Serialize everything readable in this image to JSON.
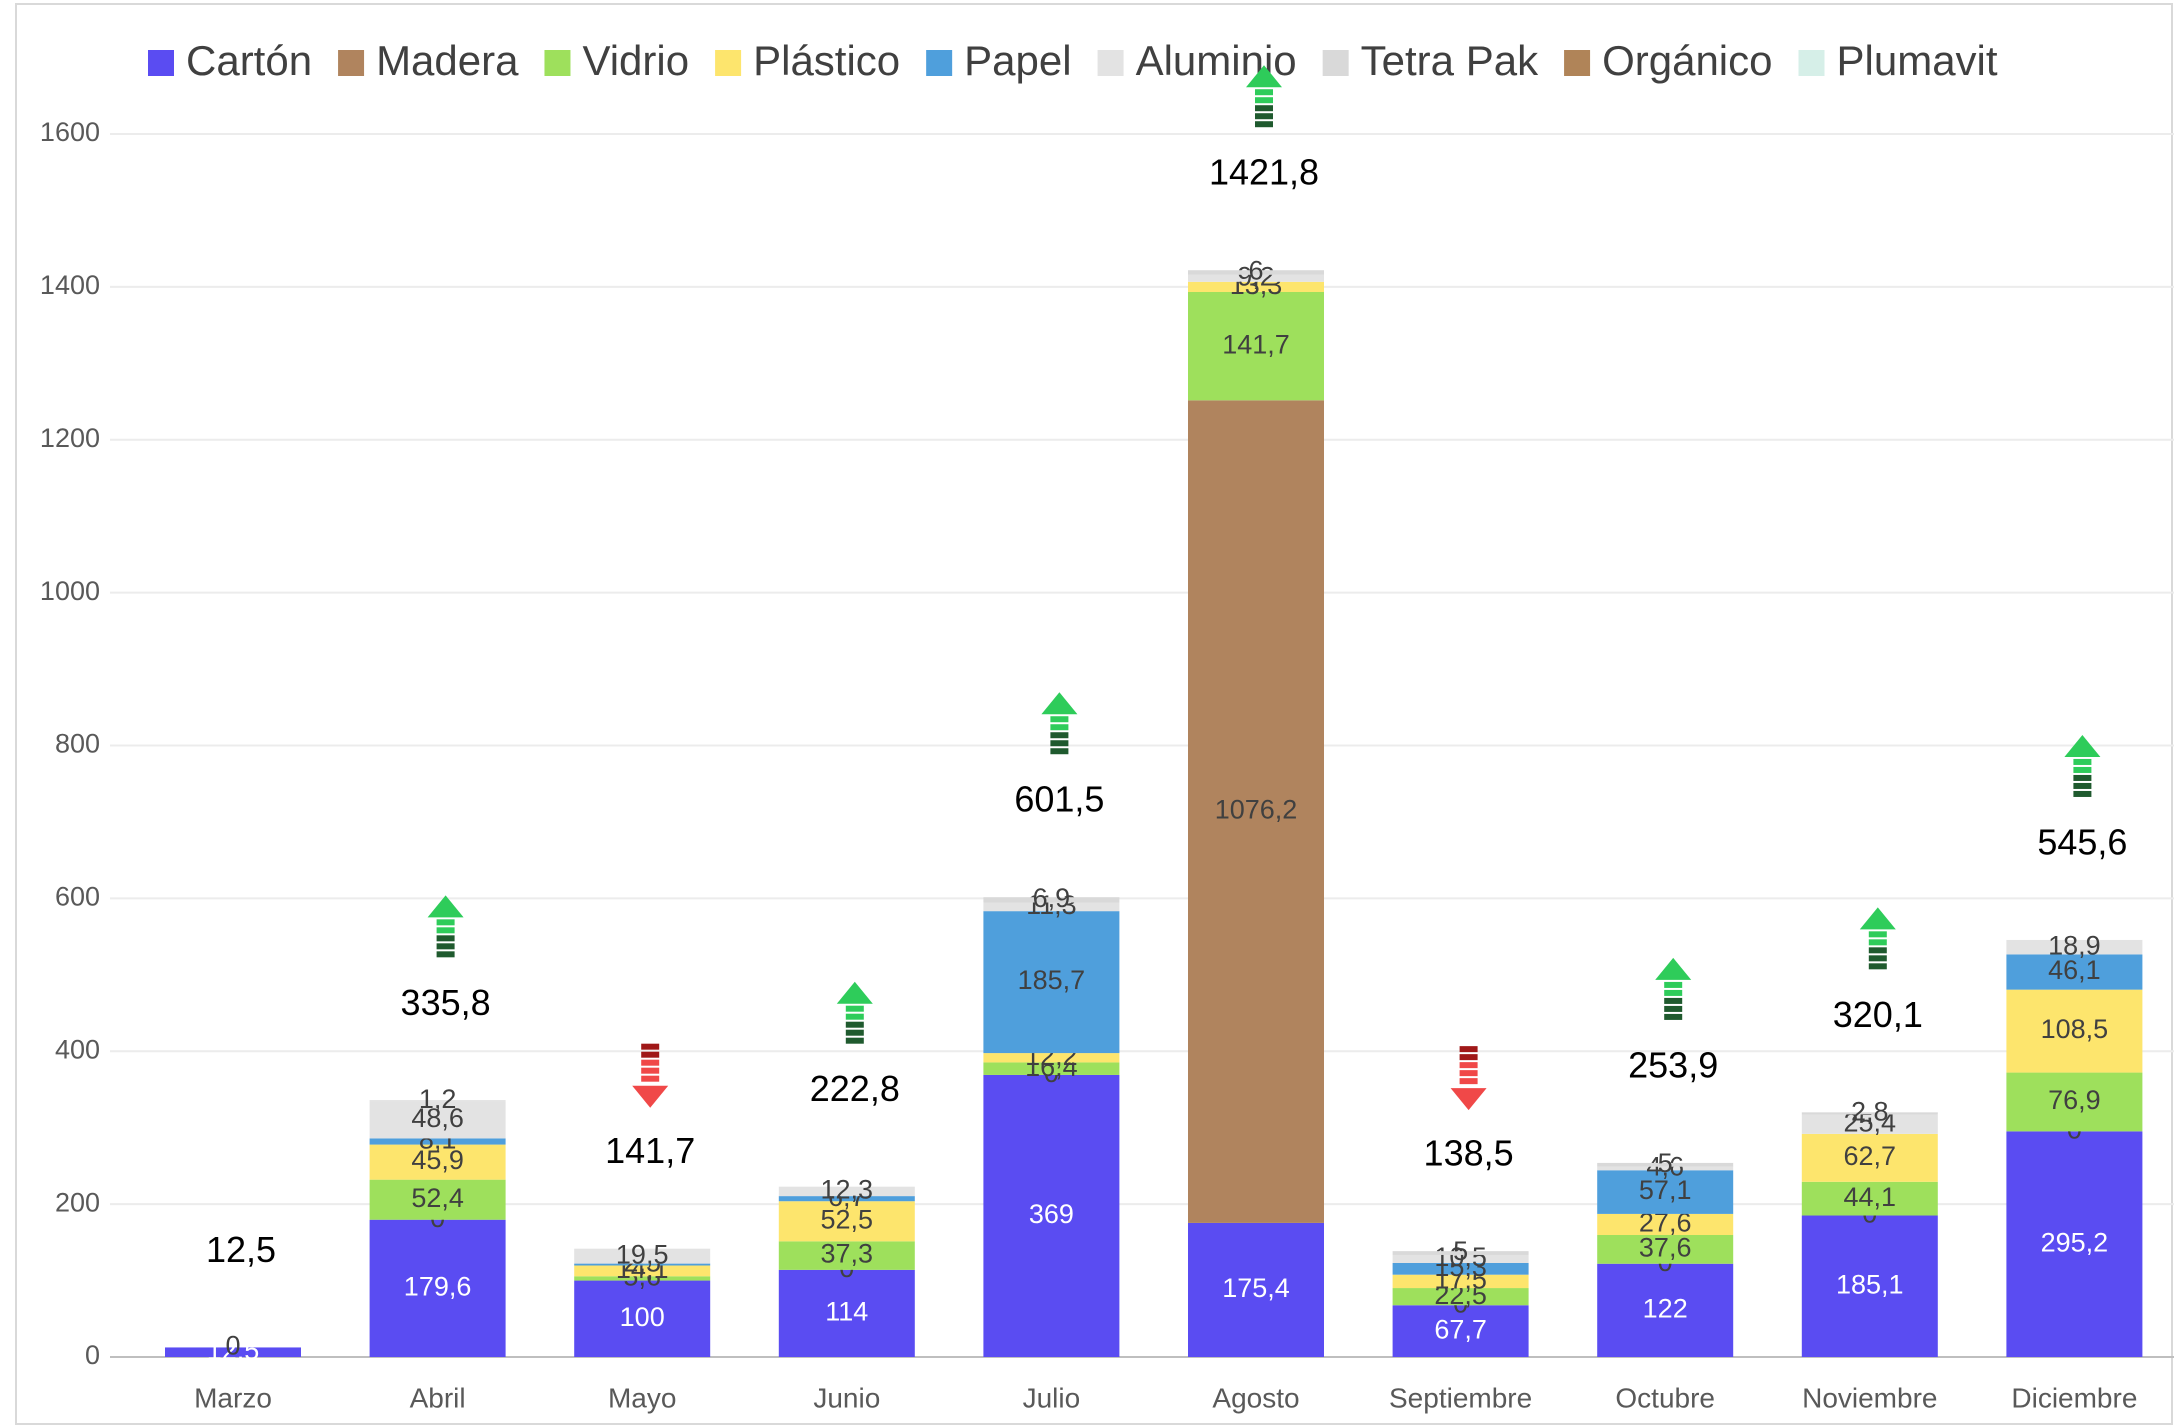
{
  "chart_data": {
    "type": "stacked_bar",
    "categories": [
      "Marzo",
      "Abril",
      "Mayo",
      "Junio",
      "Julio",
      "Agosto",
      "Septiembre",
      "Octubre",
      "Noviembre",
      "Diciembre"
    ],
    "series": [
      {
        "name": "Cartón",
        "color": "#5a4cf2",
        "values": [
          12.5,
          179.6,
          100,
          114,
          369,
          175.4,
          67.7,
          122,
          185.1,
          295.2
        ],
        "value_labels": [
          "12,5",
          "179,6",
          "100",
          "114",
          "369",
          "175,4",
          "67,7",
          "122",
          "185,1",
          "295,2"
        ]
      },
      {
        "name": "Madera",
        "color": "#b0845e",
        "values": [
          0,
          0,
          0,
          0,
          0,
          1076.2,
          0,
          0,
          0,
          0
        ],
        "value_labels": [
          "0",
          "0",
          null,
          "0",
          "0",
          "1076,2",
          "0",
          "0",
          "0",
          "0"
        ]
      },
      {
        "name": "Vidrio",
        "color": "#9ee05c",
        "values": [
          0,
          52.4,
          5.6,
          37.3,
          16.4,
          141.7,
          22.5,
          37.6,
          44.1,
          76.9
        ],
        "value_labels": [
          null,
          "52,4",
          "5,6",
          "37,3",
          "16,4",
          "141,7",
          "22,5",
          "37,6",
          "44,1",
          "76,9"
        ]
      },
      {
        "name": "Plástico",
        "color": "#fde56d",
        "values": [
          0,
          45.9,
          14.1,
          52.5,
          12.2,
          13.3,
          17.5,
          27.6,
          62.7,
          108.5
        ],
        "value_labels": [
          null,
          "45,9",
          "14,1",
          "52,5",
          "12,2",
          "13,3",
          "17,5",
          "27,6",
          "62,7",
          "108,5"
        ]
      },
      {
        "name": "Papel",
        "color": "#4f9fdc",
        "values": [
          0,
          8.1,
          2.5,
          6.7,
          185.7,
          0,
          15.3,
          57.1,
          0,
          46.1
        ],
        "value_labels": [
          null,
          "8,1",
          "2,5",
          "6,7",
          "185,7",
          null,
          "15,3",
          "57,1",
          null,
          "46,1"
        ]
      },
      {
        "name": "Aluminio",
        "color": "#e3e3e3",
        "values": [
          0,
          48.6,
          19.5,
          12.3,
          11.3,
          9.2,
          10.5,
          4.6,
          25.4,
          18.9
        ],
        "value_labels": [
          null,
          "48,6",
          "19,5",
          "12,3",
          "11,3",
          "9,2",
          "10,5",
          "4,6",
          "25,4",
          "18,9"
        ]
      },
      {
        "name": "Tetra Pak",
        "color": "#d9d9d9",
        "values": [
          0,
          1.2,
          0,
          0,
          6.9,
          6,
          5,
          5,
          2.8,
          0
        ],
        "value_labels": [
          null,
          "1,2",
          null,
          null,
          "6,9",
          "6",
          "5",
          "5",
          "2,8",
          null
        ]
      },
      {
        "name": "Orgánico",
        "color": "#b08458",
        "values": [
          0,
          0,
          0,
          0,
          0,
          0,
          0,
          0,
          0,
          0
        ]
      },
      {
        "name": "Plumavit",
        "color": "#d6efe8",
        "values": [
          0,
          0,
          0,
          0,
          0,
          0,
          0,
          0,
          0,
          0
        ]
      }
    ],
    "totals": [
      12.5,
      335.8,
      141.7,
      222.8,
      601.5,
      1421.8,
      138.5,
      253.9,
      320.1,
      545.6
    ],
    "total_labels": [
      "12,5",
      "335,8",
      "141,7",
      "222,8",
      "601,5",
      "1421,8",
      "138,5",
      "253,9",
      "320,1",
      "545,6"
    ],
    "trend": [
      null,
      "up",
      "down",
      "up",
      "up",
      "up",
      "down",
      "up",
      "up",
      "up"
    ],
    "ylim": [
      0,
      1600
    ],
    "yticks": [
      0,
      200,
      400,
      600,
      800,
      1000,
      1200,
      1400,
      1600
    ],
    "grid": true
  }
}
